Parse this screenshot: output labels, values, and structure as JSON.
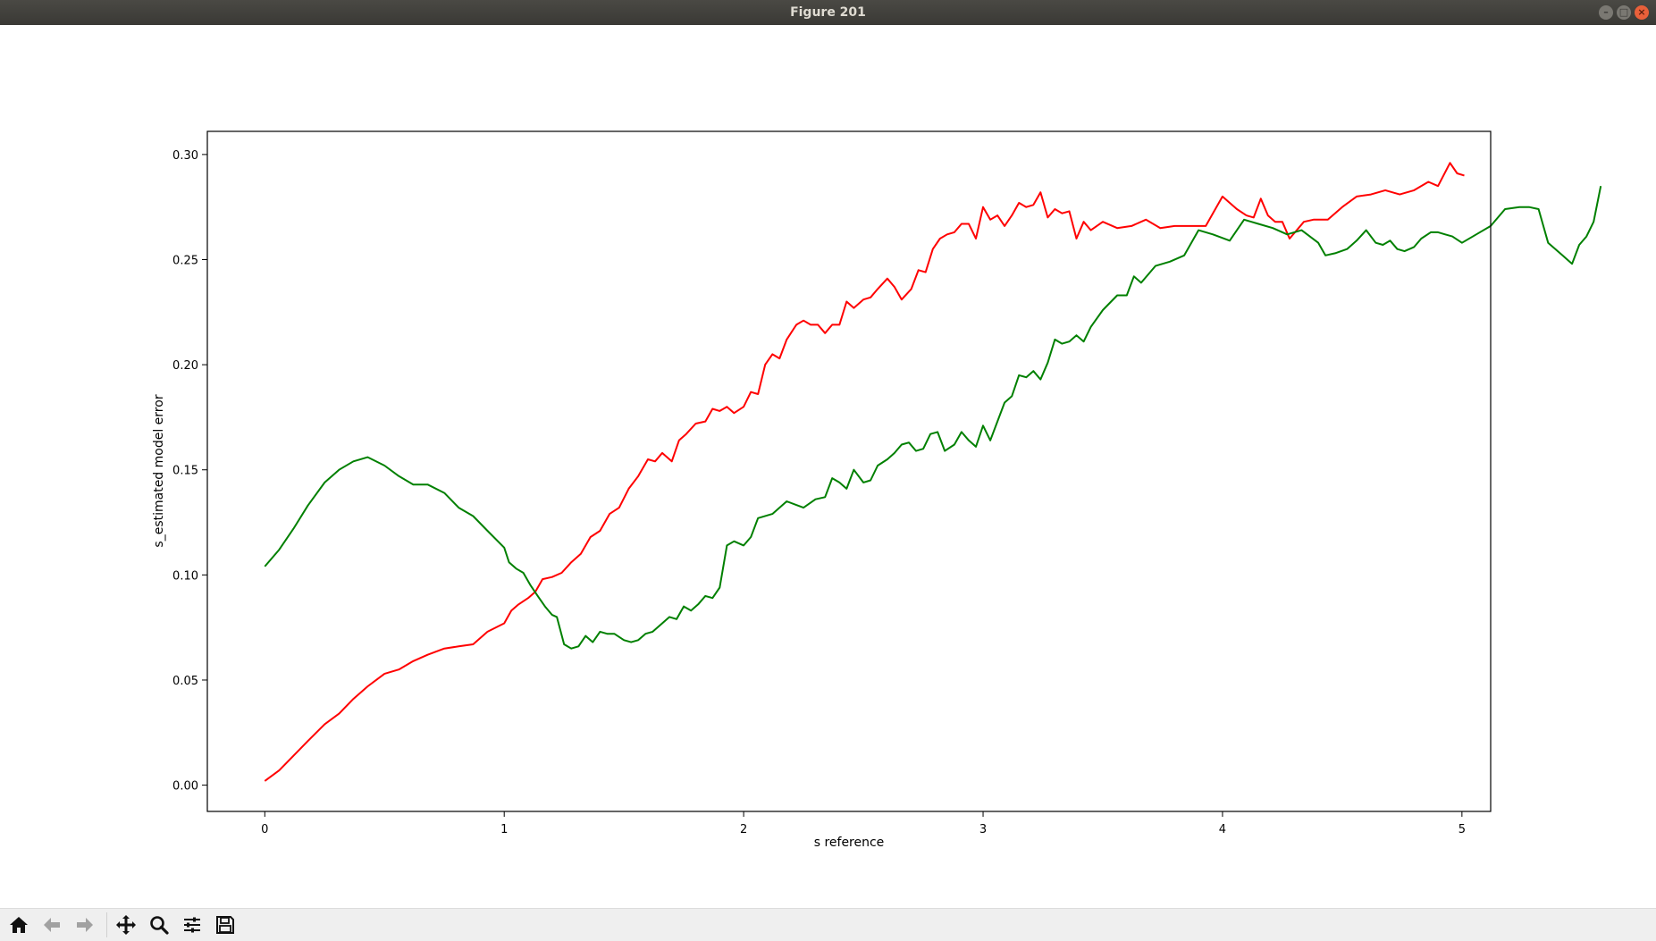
{
  "window": {
    "title": "Figure 201"
  },
  "toolbar": {
    "tools": [
      {
        "name": "home-icon"
      },
      {
        "name": "back-icon"
      },
      {
        "name": "forward-icon"
      },
      {
        "name": "pan-icon"
      },
      {
        "name": "zoom-icon"
      },
      {
        "name": "configure-subplots-icon"
      },
      {
        "name": "save-icon"
      }
    ]
  },
  "chart_data": {
    "type": "line",
    "title": "",
    "xlabel": "s reference",
    "ylabel": "s_estimated model error",
    "xlim": [
      -0.24,
      5.12
    ],
    "ylim": [
      -0.0125,
      0.311
    ],
    "xticks": [
      0,
      1,
      2,
      3,
      4,
      5
    ],
    "xtick_labels": [
      "0",
      "1",
      "2",
      "3",
      "4",
      "5"
    ],
    "yticks": [
      0.0,
      0.05,
      0.1,
      0.15,
      0.2,
      0.25,
      0.3
    ],
    "ytick_labels": [
      "0.00",
      "0.05",
      "0.10",
      "0.15",
      "0.20",
      "0.25",
      "0.30"
    ],
    "grid": false,
    "series": [
      {
        "color": "#ff0000",
        "points": [
          [
            0.0,
            0.002
          ],
          [
            0.06,
            0.007
          ],
          [
            0.12,
            0.014
          ],
          [
            0.18,
            0.021
          ],
          [
            0.25,
            0.029
          ],
          [
            0.31,
            0.034
          ],
          [
            0.37,
            0.041
          ],
          [
            0.43,
            0.047
          ],
          [
            0.5,
            0.053
          ],
          [
            0.56,
            0.055
          ],
          [
            0.62,
            0.059
          ],
          [
            0.68,
            0.062
          ],
          [
            0.75,
            0.065
          ],
          [
            0.81,
            0.066
          ],
          [
            0.87,
            0.067
          ],
          [
            0.93,
            0.073
          ],
          [
            1.0,
            0.077
          ],
          [
            1.03,
            0.083
          ],
          [
            1.06,
            0.086
          ],
          [
            1.1,
            0.089
          ],
          [
            1.13,
            0.092
          ],
          [
            1.16,
            0.098
          ],
          [
            1.2,
            0.099
          ],
          [
            1.24,
            0.101
          ],
          [
            1.28,
            0.106
          ],
          [
            1.32,
            0.11
          ],
          [
            1.36,
            0.118
          ],
          [
            1.4,
            0.121
          ],
          [
            1.44,
            0.129
          ],
          [
            1.48,
            0.132
          ],
          [
            1.52,
            0.141
          ],
          [
            1.56,
            0.147
          ],
          [
            1.6,
            0.155
          ],
          [
            1.63,
            0.154
          ],
          [
            1.66,
            0.158
          ],
          [
            1.7,
            0.154
          ],
          [
            1.73,
            0.164
          ],
          [
            1.76,
            0.167
          ],
          [
            1.8,
            0.172
          ],
          [
            1.84,
            0.173
          ],
          [
            1.87,
            0.179
          ],
          [
            1.9,
            0.178
          ],
          [
            1.93,
            0.18
          ],
          [
            1.96,
            0.177
          ],
          [
            2.0,
            0.18
          ],
          [
            2.03,
            0.187
          ],
          [
            2.06,
            0.186
          ],
          [
            2.09,
            0.2
          ],
          [
            2.12,
            0.205
          ],
          [
            2.15,
            0.203
          ],
          [
            2.18,
            0.212
          ],
          [
            2.22,
            0.219
          ],
          [
            2.25,
            0.221
          ],
          [
            2.28,
            0.219
          ],
          [
            2.31,
            0.219
          ],
          [
            2.34,
            0.215
          ],
          [
            2.37,
            0.219
          ],
          [
            2.4,
            0.219
          ],
          [
            2.43,
            0.23
          ],
          [
            2.46,
            0.227
          ],
          [
            2.5,
            0.231
          ],
          [
            2.53,
            0.232
          ],
          [
            2.56,
            0.236
          ],
          [
            2.6,
            0.241
          ],
          [
            2.63,
            0.237
          ],
          [
            2.66,
            0.231
          ],
          [
            2.7,
            0.236
          ],
          [
            2.73,
            0.245
          ],
          [
            2.76,
            0.244
          ],
          [
            2.79,
            0.255
          ],
          [
            2.82,
            0.26
          ],
          [
            2.85,
            0.262
          ],
          [
            2.88,
            0.263
          ],
          [
            2.91,
            0.267
          ],
          [
            2.94,
            0.267
          ],
          [
            2.97,
            0.26
          ],
          [
            3.0,
            0.275
          ],
          [
            3.03,
            0.269
          ],
          [
            3.06,
            0.271
          ],
          [
            3.09,
            0.266
          ],
          [
            3.12,
            0.271
          ],
          [
            3.15,
            0.277
          ],
          [
            3.18,
            0.275
          ],
          [
            3.21,
            0.276
          ],
          [
            3.24,
            0.282
          ],
          [
            3.27,
            0.27
          ],
          [
            3.3,
            0.274
          ],
          [
            3.33,
            0.272
          ],
          [
            3.36,
            0.273
          ],
          [
            3.39,
            0.26
          ],
          [
            3.42,
            0.268
          ],
          [
            3.45,
            0.264
          ],
          [
            3.5,
            0.268
          ],
          [
            3.56,
            0.265
          ],
          [
            3.62,
            0.266
          ],
          [
            3.68,
            0.269
          ],
          [
            3.74,
            0.265
          ],
          [
            3.8,
            0.266
          ],
          [
            3.86,
            0.266
          ],
          [
            3.93,
            0.266
          ],
          [
            3.96,
            0.272
          ],
          [
            4.0,
            0.28
          ],
          [
            4.03,
            0.277
          ],
          [
            4.06,
            0.274
          ],
          [
            4.1,
            0.271
          ],
          [
            4.13,
            0.27
          ],
          [
            4.16,
            0.279
          ],
          [
            4.19,
            0.271
          ],
          [
            4.22,
            0.268
          ],
          [
            4.25,
            0.268
          ],
          [
            4.28,
            0.26
          ],
          [
            4.31,
            0.264
          ],
          [
            4.34,
            0.268
          ],
          [
            4.38,
            0.269
          ],
          [
            4.44,
            0.269
          ],
          [
            4.5,
            0.275
          ],
          [
            4.56,
            0.28
          ],
          [
            4.62,
            0.281
          ],
          [
            4.68,
            0.283
          ],
          [
            4.74,
            0.281
          ],
          [
            4.8,
            0.283
          ],
          [
            4.86,
            0.287
          ],
          [
            4.9,
            0.285
          ],
          [
            4.95,
            0.296
          ],
          [
            4.98,
            0.291
          ],
          [
            5.01,
            0.29
          ]
        ]
      },
      {
        "color": "#008000",
        "points": [
          [
            0.0,
            0.104
          ],
          [
            0.06,
            0.112
          ],
          [
            0.12,
            0.122
          ],
          [
            0.18,
            0.133
          ],
          [
            0.25,
            0.144
          ],
          [
            0.31,
            0.15
          ],
          [
            0.37,
            0.154
          ],
          [
            0.43,
            0.156
          ],
          [
            0.5,
            0.152
          ],
          [
            0.56,
            0.147
          ],
          [
            0.62,
            0.143
          ],
          [
            0.68,
            0.143
          ],
          [
            0.75,
            0.139
          ],
          [
            0.81,
            0.132
          ],
          [
            0.87,
            0.128
          ],
          [
            0.93,
            0.121
          ],
          [
            1.0,
            0.113
          ],
          [
            1.02,
            0.106
          ],
          [
            1.05,
            0.103
          ],
          [
            1.08,
            0.101
          ],
          [
            1.11,
            0.095
          ],
          [
            1.14,
            0.09
          ],
          [
            1.17,
            0.085
          ],
          [
            1.2,
            0.081
          ],
          [
            1.22,
            0.08
          ],
          [
            1.25,
            0.067
          ],
          [
            1.28,
            0.065
          ],
          [
            1.31,
            0.066
          ],
          [
            1.34,
            0.071
          ],
          [
            1.37,
            0.068
          ],
          [
            1.4,
            0.073
          ],
          [
            1.43,
            0.072
          ],
          [
            1.46,
            0.072
          ],
          [
            1.5,
            0.069
          ],
          [
            1.53,
            0.068
          ],
          [
            1.56,
            0.069
          ],
          [
            1.59,
            0.072
          ],
          [
            1.62,
            0.073
          ],
          [
            1.66,
            0.077
          ],
          [
            1.69,
            0.08
          ],
          [
            1.72,
            0.079
          ],
          [
            1.75,
            0.085
          ],
          [
            1.78,
            0.083
          ],
          [
            1.81,
            0.086
          ],
          [
            1.84,
            0.09
          ],
          [
            1.87,
            0.089
          ],
          [
            1.9,
            0.094
          ],
          [
            1.93,
            0.114
          ],
          [
            1.96,
            0.116
          ],
          [
            2.0,
            0.114
          ],
          [
            2.03,
            0.118
          ],
          [
            2.06,
            0.127
          ],
          [
            2.12,
            0.129
          ],
          [
            2.18,
            0.135
          ],
          [
            2.25,
            0.132
          ],
          [
            2.3,
            0.136
          ],
          [
            2.34,
            0.137
          ],
          [
            2.37,
            0.146
          ],
          [
            2.4,
            0.144
          ],
          [
            2.43,
            0.141
          ],
          [
            2.46,
            0.15
          ],
          [
            2.5,
            0.144
          ],
          [
            2.53,
            0.145
          ],
          [
            2.56,
            0.152
          ],
          [
            2.6,
            0.155
          ],
          [
            2.63,
            0.158
          ],
          [
            2.66,
            0.162
          ],
          [
            2.69,
            0.163
          ],
          [
            2.72,
            0.159
          ],
          [
            2.75,
            0.16
          ],
          [
            2.78,
            0.167
          ],
          [
            2.81,
            0.168
          ],
          [
            2.84,
            0.159
          ],
          [
            2.88,
            0.162
          ],
          [
            2.91,
            0.168
          ],
          [
            2.94,
            0.164
          ],
          [
            2.97,
            0.161
          ],
          [
            3.0,
            0.171
          ],
          [
            3.03,
            0.164
          ],
          [
            3.06,
            0.173
          ],
          [
            3.09,
            0.182
          ],
          [
            3.12,
            0.185
          ],
          [
            3.15,
            0.195
          ],
          [
            3.18,
            0.194
          ],
          [
            3.21,
            0.197
          ],
          [
            3.24,
            0.193
          ],
          [
            3.27,
            0.201
          ],
          [
            3.3,
            0.212
          ],
          [
            3.33,
            0.21
          ],
          [
            3.36,
            0.211
          ],
          [
            3.39,
            0.214
          ],
          [
            3.42,
            0.211
          ],
          [
            3.45,
            0.218
          ],
          [
            3.5,
            0.226
          ],
          [
            3.56,
            0.233
          ],
          [
            3.6,
            0.233
          ],
          [
            3.63,
            0.242
          ],
          [
            3.66,
            0.239
          ],
          [
            3.72,
            0.247
          ],
          [
            3.78,
            0.249
          ],
          [
            3.84,
            0.252
          ],
          [
            3.9,
            0.264
          ],
          [
            3.96,
            0.262
          ],
          [
            4.03,
            0.259
          ],
          [
            4.09,
            0.269
          ],
          [
            4.15,
            0.267
          ],
          [
            4.21,
            0.265
          ],
          [
            4.27,
            0.262
          ],
          [
            4.33,
            0.264
          ],
          [
            4.4,
            0.258
          ],
          [
            4.43,
            0.252
          ],
          [
            4.47,
            0.253
          ],
          [
            4.52,
            0.255
          ],
          [
            4.56,
            0.259
          ],
          [
            4.6,
            0.264
          ],
          [
            4.64,
            0.258
          ],
          [
            4.67,
            0.257
          ],
          [
            4.7,
            0.259
          ],
          [
            4.73,
            0.255
          ],
          [
            4.76,
            0.254
          ],
          [
            4.8,
            0.256
          ],
          [
            4.83,
            0.26
          ],
          [
            4.87,
            0.263
          ],
          [
            4.9,
            0.263
          ],
          [
            4.93,
            0.262
          ],
          [
            4.96,
            0.261
          ],
          [
            5.0,
            0.258
          ],
          [
            5.06,
            0.262
          ],
          [
            5.12,
            0.266
          ],
          [
            5.18,
            0.274
          ],
          [
            5.24,
            0.275
          ],
          [
            5.28,
            0.275
          ],
          [
            5.32,
            0.274
          ],
          [
            5.36,
            0.258
          ],
          [
            5.42,
            0.252
          ],
          [
            5.46,
            0.248
          ],
          [
            5.49,
            0.257
          ],
          [
            5.52,
            0.261
          ],
          [
            5.55,
            0.268
          ],
          [
            5.58,
            0.285
          ]
        ]
      }
    ]
  }
}
